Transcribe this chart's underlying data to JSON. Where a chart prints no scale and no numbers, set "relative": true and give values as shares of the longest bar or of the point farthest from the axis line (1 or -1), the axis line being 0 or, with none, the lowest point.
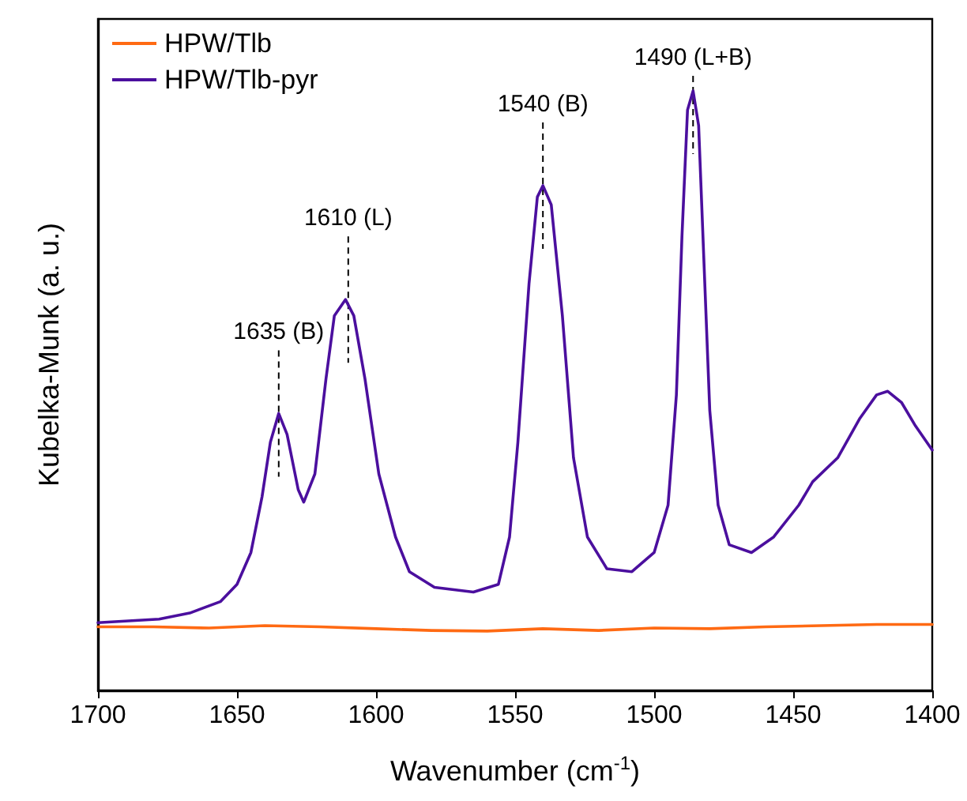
{
  "chart_data": {
    "type": "line",
    "relative": true,
    "xlabel": "Wavenumber (cm$^{-1}$)",
    "ylabel": "Kubelka-Munk (a. u.)",
    "xlim": [
      1700,
      1400
    ],
    "xticks": [
      1700,
      1650,
      1600,
      1550,
      1500,
      1450,
      1400
    ],
    "tick_labels": "x",
    "legend": "top left",
    "grid": false,
    "marker": "none",
    "line_style": "solid",
    "series": [
      {
        "name": "HPW/Tlb",
        "color": "#ff6a13",
        "x": [
          1700,
          1680,
          1660,
          1640,
          1620,
          1600,
          1580,
          1560,
          1540,
          1520,
          1500,
          1480,
          1460,
          1440,
          1420,
          1400
        ],
        "values": [
          0.106,
          0.106,
          0.104,
          0.108,
          0.106,
          0.103,
          0.1,
          0.099,
          0.103,
          0.1,
          0.104,
          0.103,
          0.106,
          0.108,
          0.11,
          0.11
        ]
      },
      {
        "name": "HPW/Tlb-pyr",
        "color": "#4b0f9e",
        "x": [
          1700,
          1678,
          1667,
          1656,
          1650,
          1645,
          1641,
          1638,
          1635,
          1632,
          1628,
          1626,
          1622,
          1618,
          1615,
          1611,
          1608,
          1604,
          1599,
          1593,
          1588,
          1579,
          1565,
          1556,
          1552,
          1549,
          1545,
          1542,
          1540,
          1537,
          1533,
          1529,
          1524,
          1517,
          1508,
          1500,
          1495,
          1492,
          1490,
          1488,
          1486,
          1484,
          1482,
          1480,
          1477,
          1473,
          1465,
          1457,
          1448,
          1443,
          1434,
          1426,
          1420,
          1416,
          1411,
          1406,
          1400
        ],
        "values": [
          0.113,
          0.119,
          0.129,
          0.148,
          0.177,
          0.23,
          0.323,
          0.414,
          0.462,
          0.427,
          0.335,
          0.314,
          0.361,
          0.52,
          0.625,
          0.652,
          0.625,
          0.52,
          0.361,
          0.256,
          0.198,
          0.172,
          0.164,
          0.177,
          0.256,
          0.414,
          0.678,
          0.823,
          0.842,
          0.81,
          0.625,
          0.388,
          0.256,
          0.203,
          0.198,
          0.23,
          0.309,
          0.493,
          0.757,
          0.968,
          1,
          0.942,
          0.704,
          0.467,
          0.309,
          0.243,
          0.23,
          0.256,
          0.309,
          0.348,
          0.388,
          0.454,
          0.493,
          0.499,
          0.48,
          0.441,
          0.401
        ]
      }
    ],
    "annotations": [
      {
        "text": "1635 (B)",
        "x": 1635,
        "y": 0.462
      },
      {
        "text": "1610 (L)",
        "x": 1610,
        "y": 0.652
      },
      {
        "text": "1540 (B)",
        "x": 1540,
        "y": 0.842
      },
      {
        "text": "1490 (L+B)",
        "x": 1486,
        "y": 1
      }
    ]
  }
}
